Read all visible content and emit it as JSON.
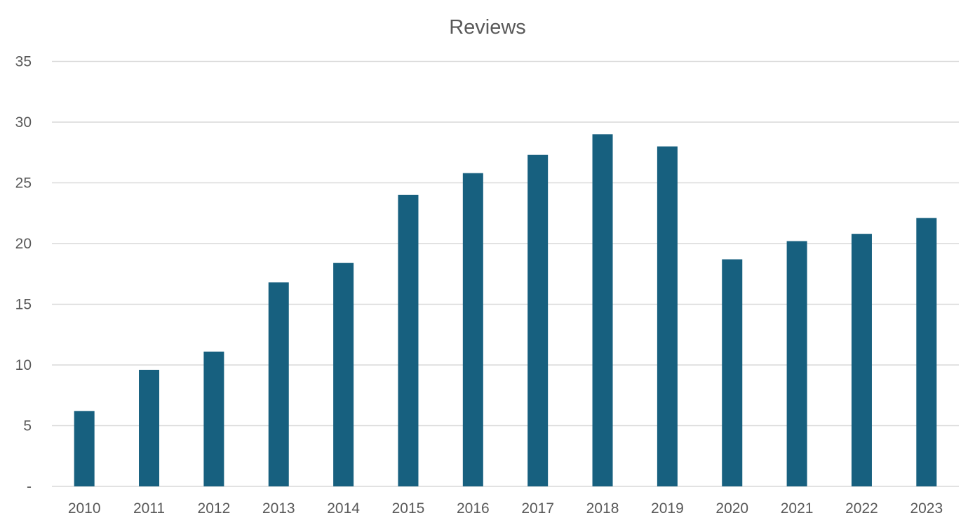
{
  "chart_data": {
    "type": "bar",
    "title": "Reviews",
    "xlabel": "",
    "ylabel": "",
    "categories": [
      "2010",
      "2011",
      "2012",
      "2013",
      "2014",
      "2015",
      "2016",
      "2017",
      "2018",
      "2019",
      "2020",
      "2021",
      "2022",
      "2023"
    ],
    "values": [
      6.2,
      9.6,
      11.1,
      16.8,
      18.4,
      24.0,
      25.8,
      27.3,
      29.0,
      28.0,
      18.7,
      20.2,
      20.8,
      22.1
    ],
    "ylim": [
      0,
      35
    ],
    "y_ticks": [
      0,
      5,
      10,
      15,
      20,
      25,
      30,
      35
    ],
    "y_tick_labels": [
      "-",
      "5",
      "10",
      "15",
      "20",
      "25",
      "30",
      "35"
    ],
    "grid": true,
    "legend": "none",
    "bar_color": "#17607f"
  }
}
